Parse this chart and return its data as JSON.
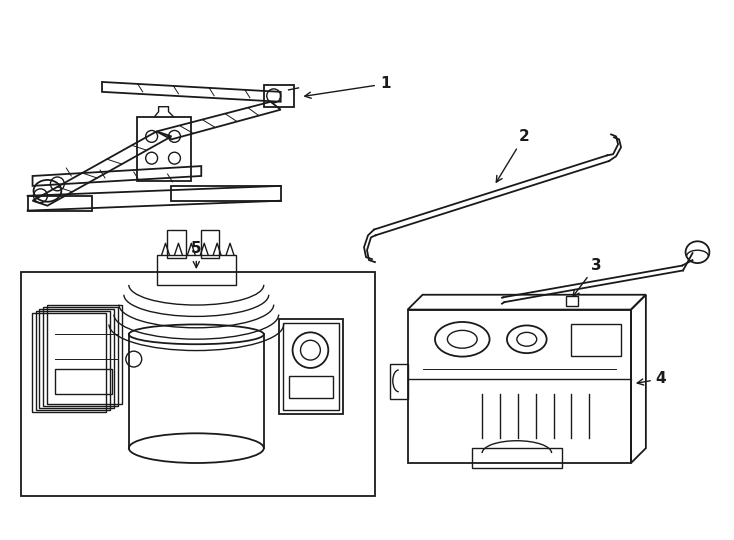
{
  "bg_color": "#ffffff",
  "line_color": "#1a1a1a",
  "fig_width": 7.34,
  "fig_height": 5.4,
  "dpi": 100,
  "label_fontsize": 11,
  "label_fontweight": "bold"
}
